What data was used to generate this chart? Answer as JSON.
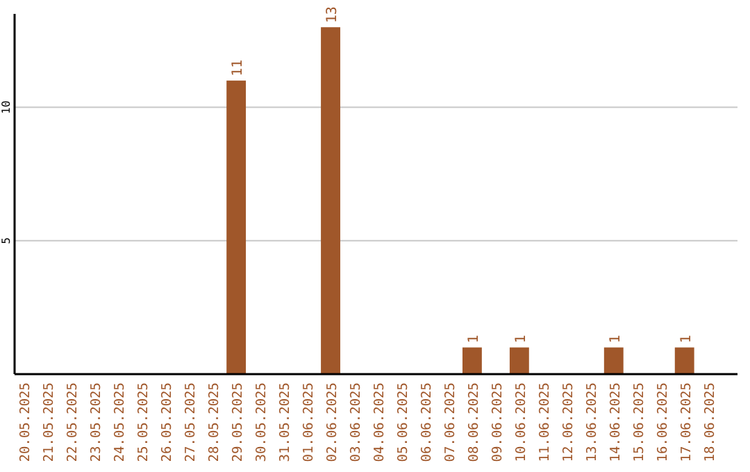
{
  "chart_data": {
    "type": "bar",
    "categories": [
      "20.05.2025",
      "21.05.2025",
      "22.05.2025",
      "23.05.2025",
      "24.05.2025",
      "25.05.2025",
      "26.05.2025",
      "27.05.2025",
      "28.05.2025",
      "29.05.2025",
      "30.05.2025",
      "31.05.2025",
      "01.06.2025",
      "02.06.2025",
      "03.06.2025",
      "04.06.2025",
      "05.06.2025",
      "06.06.2025",
      "07.06.2025",
      "08.06.2025",
      "09.06.2025",
      "10.06.2025",
      "11.06.2025",
      "12.06.2025",
      "13.06.2025",
      "14.06.2025",
      "15.06.2025",
      "16.06.2025",
      "17.06.2025",
      "18.06.2025"
    ],
    "values": [
      0,
      0,
      0,
      0,
      0,
      0,
      0,
      0,
      0,
      11,
      0,
      0,
      0,
      13,
      0,
      0,
      0,
      0,
      0,
      1,
      0,
      1,
      0,
      0,
      0,
      1,
      0,
      0,
      1,
      0
    ],
    "value_labels": [
      null,
      null,
      null,
      null,
      null,
      null,
      null,
      null,
      null,
      "11",
      null,
      null,
      null,
      "13",
      null,
      null,
      null,
      null,
      null,
      "1",
      null,
      "1",
      null,
      null,
      null,
      "1",
      null,
      null,
      "1",
      null
    ],
    "color": "#a0572a",
    "ylim": [
      0,
      13.5
    ],
    "yticks": [
      5,
      10
    ],
    "grid": "y"
  }
}
